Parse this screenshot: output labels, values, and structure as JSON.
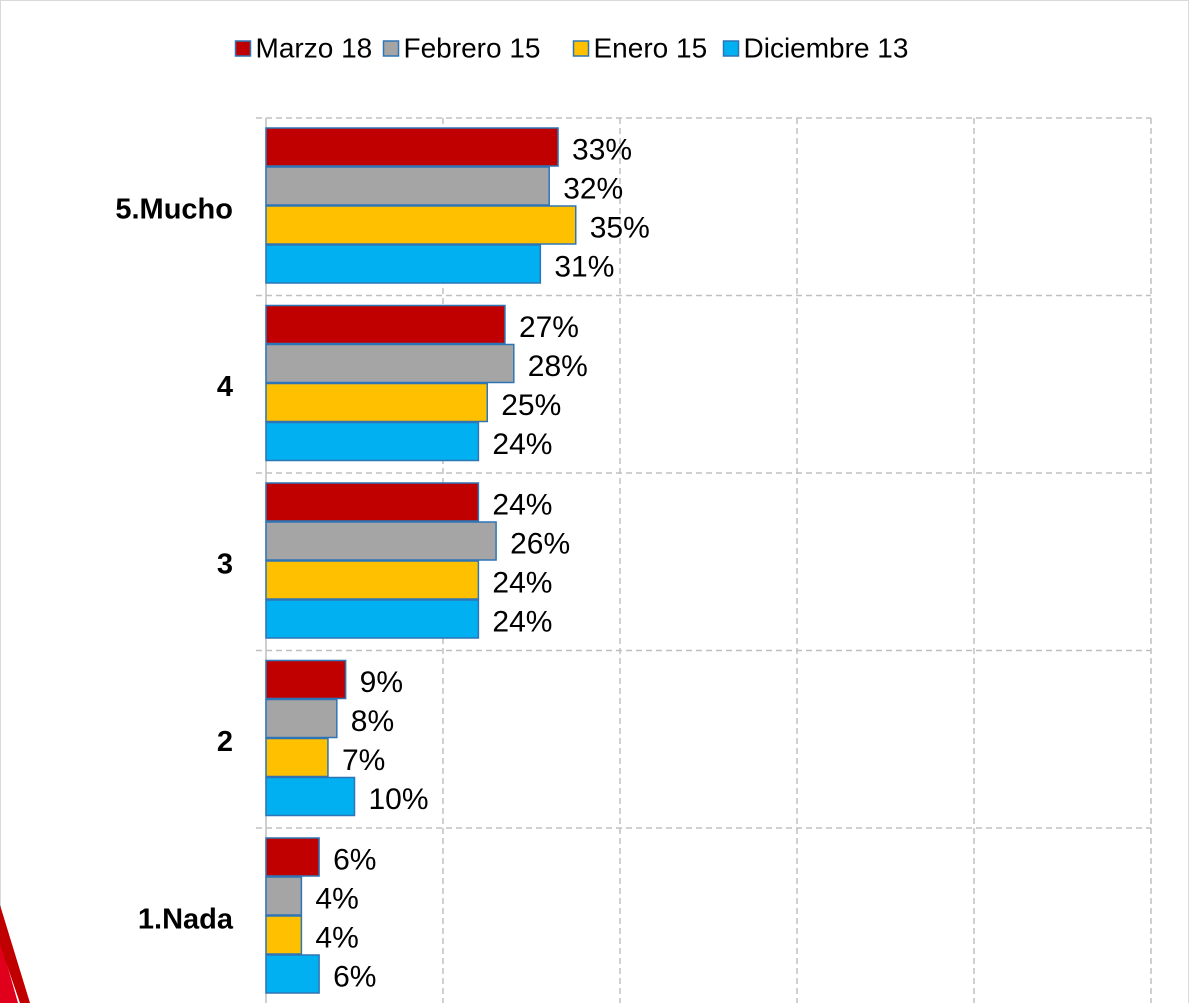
{
  "chart_data": {
    "type": "hbar",
    "categories": [
      "5.Mucho",
      "4",
      "3",
      "2",
      "1.Nada"
    ],
    "series": [
      {
        "name": "Marzo 18",
        "color": "#c00000",
        "values": [
          33,
          27,
          24,
          9,
          6
        ],
        "value_labels": [
          "33%",
          "27%",
          "24%",
          "9%",
          "6%"
        ]
      },
      {
        "name": "Febrero 15",
        "color": "#a5a5a5",
        "values": [
          32,
          28,
          26,
          8,
          4
        ],
        "value_labels": [
          "32%",
          "28%",
          "26%",
          "8%",
          "4%"
        ]
      },
      {
        "name": "Enero 15",
        "color": "#ffc000",
        "values": [
          35,
          25,
          24,
          7,
          4
        ],
        "value_labels": [
          "35%",
          "25%",
          "24%",
          "7%",
          "4%"
        ]
      },
      {
        "name": "Diciembre 13",
        "color": "#00b0f0",
        "values": [
          31,
          24,
          24,
          10,
          6
        ],
        "value_labels": [
          "31%",
          "24%",
          "24%",
          "10%",
          "6%"
        ]
      }
    ],
    "xlim": [
      0,
      100
    ],
    "xticks": [
      0,
      20,
      40,
      60,
      80,
      100
    ],
    "grid": true,
    "legend": "top"
  }
}
